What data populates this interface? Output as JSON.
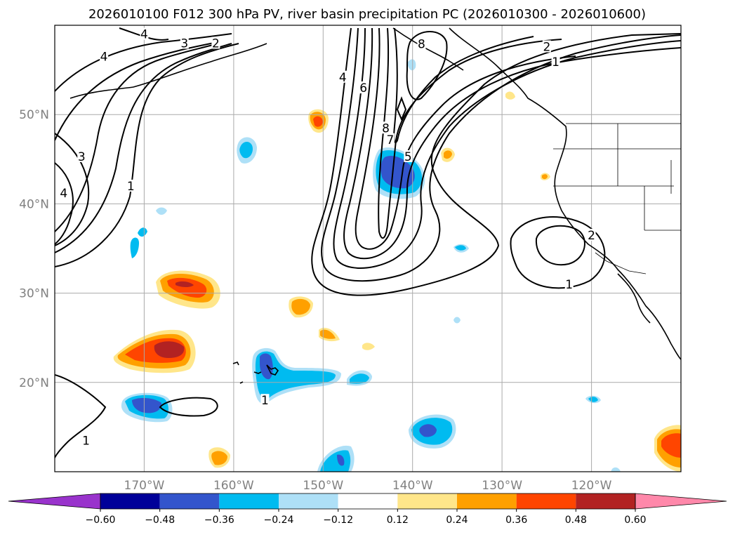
{
  "chart_data": {
    "type": "map",
    "title": "2026010100 F012 300 hPa PV, river basin precipitation PC (2026010300 - 2026010600)",
    "extent": {
      "lon": [
        -180,
        -110
      ],
      "lat": [
        10,
        60
      ]
    },
    "lat_ticks": [
      {
        "value": 20,
        "label": "20°N"
      },
      {
        "value": 30,
        "label": "30°N"
      },
      {
        "value": 40,
        "label": "40°N"
      },
      {
        "value": 50,
        "label": "50°N"
      }
    ],
    "lon_ticks": [
      {
        "value": -170,
        "label": "170°W"
      },
      {
        "value": -160,
        "label": "160°W"
      },
      {
        "value": -150,
        "label": "150°W"
      },
      {
        "value": -140,
        "label": "140°W"
      },
      {
        "value": -130,
        "label": "130°W"
      },
      {
        "value": -120,
        "label": "120°W"
      }
    ],
    "grid": true,
    "colorbar": {
      "orientation": "horizontal",
      "extend": "both",
      "levels": [
        -0.6,
        -0.48,
        -0.36,
        -0.24,
        -0.12,
        0.12,
        0.24,
        0.36,
        0.48,
        0.6
      ],
      "tick_labels": [
        "−0.60",
        "−0.48",
        "−0.36",
        "−0.24",
        "−0.12",
        "0.12",
        "0.24",
        "0.36",
        "0.48",
        "0.60"
      ],
      "under_color": "#9933cc",
      "over_color": "#ff88aa",
      "colors": [
        "#000099",
        "#3355cc",
        "#00bbf0",
        "#aee0f7",
        "#ffffff",
        "#ffe68a",
        "#ffa000",
        "#ff4500",
        "#b22222"
      ]
    },
    "pv_contour_labels": [
      {
        "lon": -170.0,
        "lat": 59.0,
        "text": "4"
      },
      {
        "lon": -174.5,
        "lat": 56.5,
        "text": "4"
      },
      {
        "lon": -165.5,
        "lat": 58.0,
        "text": "3"
      },
      {
        "lon": -162.0,
        "lat": 58.0,
        "text": "2"
      },
      {
        "lon": -177.0,
        "lat": 45.3,
        "text": "3"
      },
      {
        "lon": -179.0,
        "lat": 41.2,
        "text": "4"
      },
      {
        "lon": -171.5,
        "lat": 42.0,
        "text": "1"
      },
      {
        "lon": -147.8,
        "lat": 54.2,
        "text": "4"
      },
      {
        "lon": -145.5,
        "lat": 53.0,
        "text": "6"
      },
      {
        "lon": -143.0,
        "lat": 48.5,
        "text": "8"
      },
      {
        "lon": -142.5,
        "lat": 47.2,
        "text": "7"
      },
      {
        "lon": -140.5,
        "lat": 45.3,
        "text": "5"
      },
      {
        "lon": -139.0,
        "lat": 57.9,
        "text": "8"
      },
      {
        "lon": -125.0,
        "lat": 57.6,
        "text": "2"
      },
      {
        "lon": -124.0,
        "lat": 55.9,
        "text": "1"
      },
      {
        "lon": -122.5,
        "lat": 31.0,
        "text": "1"
      },
      {
        "lon": -120.0,
        "lat": 36.5,
        "text": "2"
      },
      {
        "lon": -156.5,
        "lat": 18.0,
        "text": "1"
      },
      {
        "lon": -176.5,
        "lat": 13.5,
        "text": "1"
      }
    ]
  }
}
